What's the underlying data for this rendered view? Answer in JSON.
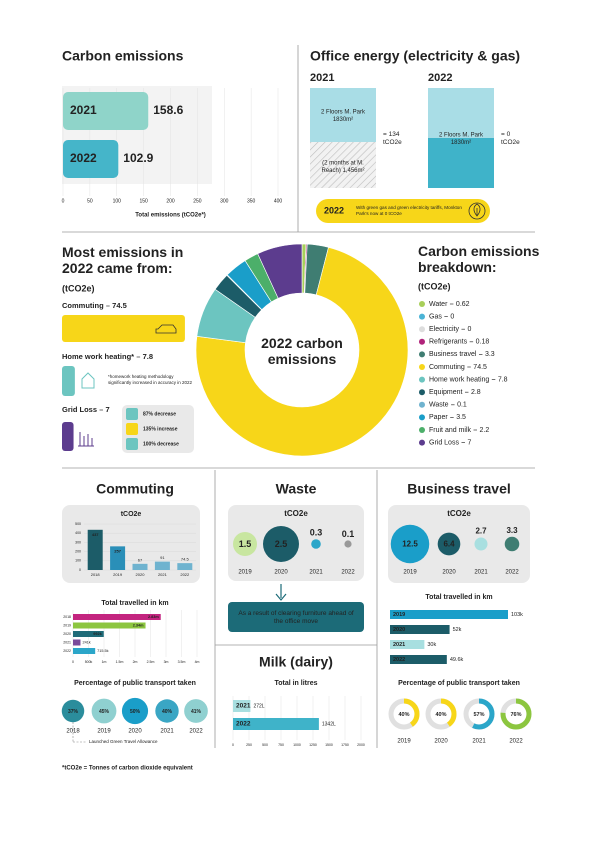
{
  "chart_data": [
    {
      "type": "hbar",
      "title": "Carbon emissions",
      "categories": [
        "2021",
        "2022"
      ],
      "values": [
        158.6,
        102.9
      ],
      "colors": [
        "#8fd4c9",
        "#45b5c9"
      ],
      "xlabel": "Total emissions (tCO2e*)",
      "xlim": [
        0,
        400
      ],
      "xticks": [
        0,
        50,
        100,
        150,
        200,
        250,
        300,
        350,
        400
      ]
    },
    {
      "type": "donut",
      "title": "Carbon emissions breakdown:",
      "subtitle": "(tCO2e)",
      "center_label": "2022 carbon emissions",
      "categories": [
        "Water",
        "Gas",
        "Electricity",
        "Refrigerants",
        "Business travel",
        "Commuting",
        "Home work heating",
        "Equipment",
        "Waste",
        "Paper",
        "Fruit and milk",
        "Grid Loss"
      ],
      "values": [
        0.62,
        0,
        0,
        0.18,
        3.3,
        74.5,
        7.8,
        2.8,
        0.1,
        3.5,
        2.2,
        7
      ],
      "colors": [
        "#a8cf5a",
        "#4bb4d6",
        "#dddddd",
        "#b0237a",
        "#3f7d72",
        "#f7d619",
        "#6cc5c0",
        "#1c5c68",
        "#6fb3cf",
        "#1a9ec9",
        "#4caf6a",
        "#5c3c8e"
      ]
    },
    {
      "type": "vbar",
      "title": "tCO2e",
      "categories": [
        "2018",
        "2019",
        "2020",
        "2021",
        "2022"
      ],
      "values": [
        437,
        257,
        67,
        91,
        74.5
      ],
      "colors": [
        "#1c5c68",
        "#2a8fb8",
        "#6fb3cf",
        "#6fb3cf",
        "#6fb3cf"
      ],
      "ylim": [
        0,
        500
      ],
      "yticks": [
        0,
        100,
        200,
        300,
        400,
        500
      ]
    },
    {
      "type": "hbar",
      "title": "Total travelled in km",
      "categories": [
        "2018",
        "2019",
        "2020",
        "2021",
        "2022"
      ],
      "values": [
        2830000,
        2340000,
        992000,
        241000,
        715500
      ],
      "value_labels": [
        "2.83m",
        "2.34m",
        "992k",
        "241k",
        "715.5k"
      ],
      "colors": [
        "#c3247f",
        "#8cc63f",
        "#1f6b78",
        "#7a4a9a",
        "#2ba6c9"
      ],
      "xlim": [
        0,
        4000000
      ],
      "xticks": [
        0,
        {
          "value": 500000,
          "label": "500k"
        },
        {
          "value": 1000000,
          "label": "1m"
        },
        {
          "value": 1500000,
          "label": "1.5m"
        },
        {
          "value": 2000000,
          "label": "2m"
        },
        {
          "value": 2500000,
          "label": "2.5m"
        },
        {
          "value": 3000000,
          "label": "3m"
        },
        {
          "value": 3500000,
          "label": "3.5m"
        },
        {
          "value": 4000000,
          "label": "4m"
        }
      ]
    },
    {
      "type": "bubble",
      "title": "Percentage of public transport taken",
      "categories": [
        "2018",
        "2019",
        "2020",
        "2021",
        "2022"
      ],
      "values": [
        37,
        45,
        50,
        40,
        41
      ],
      "value_labels": [
        "37%",
        "45%",
        "50%",
        "40%",
        "41%"
      ],
      "colors": [
        "#2b8d9c",
        "#8fd0d0",
        "#1a9ec9",
        "#3aa6c4",
        "#8fd0d0"
      ],
      "note": "Launched Green Travel Allowance"
    },
    {
      "type": "bubble",
      "title": "tCO2e",
      "categories": [
        "2019",
        "2020",
        "2021",
        "2022"
      ],
      "values": [
        1.5,
        2.5,
        0.3,
        0.1
      ],
      "colors": [
        "#c8e6a0",
        "#1c5c68",
        "#2ba6c9",
        "#999999"
      ]
    },
    {
      "type": "hbar",
      "title": "Total in litres",
      "categories": [
        "2021",
        "2022"
      ],
      "values": [
        272,
        1342
      ],
      "value_labels": [
        "272L",
        "1342L"
      ],
      "colors": [
        "#a8dfe0",
        "#3fb3c9"
      ],
      "xlim": [
        0,
        2000
      ],
      "xticks": [
        0,
        250,
        500,
        750,
        1000,
        1250,
        1500,
        1750,
        2000
      ]
    },
    {
      "type": "bubble",
      "title": "tCO2e",
      "categories": [
        "2019",
        "2020",
        "2021",
        "2022"
      ],
      "values": [
        12.5,
        6.4,
        2.7,
        3.3
      ],
      "colors": [
        "#1a9ec9",
        "#1c5c68",
        "#a8dfe0",
        "#3f7d72"
      ]
    },
    {
      "type": "hbar",
      "title": "Total travelled in km",
      "categories": [
        "2019",
        "2020",
        "2021",
        "2022"
      ],
      "values": [
        103000,
        52000,
        30000,
        49600
      ],
      "value_labels": [
        "103k",
        "52k",
        "30k",
        "49.6k"
      ],
      "colors": [
        "#1a9ec9",
        "#1c5c68",
        "#a8dfe0",
        "#1c5c68"
      ]
    },
    {
      "type": "ring",
      "title": "Percentage of public transport taken",
      "categories": [
        "2019",
        "2020",
        "2021",
        "2022"
      ],
      "values": [
        40,
        40,
        57,
        76
      ],
      "value_labels": [
        "40%",
        "40%",
        "57%",
        "76%"
      ],
      "colors": [
        "#f7d619",
        "#f7d619",
        "#2ba6c9",
        "#8cc63f"
      ]
    }
  ],
  "office_energy": {
    "title": "Office energy (electricity & gas)",
    "years": [
      {
        "year": "2021",
        "blocks": [
          "2 Floors M. Park 1830m²",
          "(2 months at M. Reach) 1,456m²"
        ],
        "result": "= 134 tCO2e"
      },
      {
        "year": "2022",
        "blocks": [
          "2 Floors M. Park 1830m²"
        ],
        "result": "= 0 tCO2e"
      }
    ],
    "badge": "2022",
    "note": "With green gas and green electricity tariffs, Monkton Park's now at 0 tCO2e"
  },
  "most_emissions": {
    "title": "Most emissions in 2022 came from:",
    "subtitle": "(tCO2e)",
    "items": [
      {
        "name": "Commuting",
        "value": 74.5,
        "color": "#f7d619"
      },
      {
        "name": "Home work heating*",
        "value": 7.8,
        "color": "#6cc5c0"
      },
      {
        "name": "Grid Loss",
        "value": 7,
        "color": "#5c3c8e"
      }
    ],
    "note": "*homework heating methodology significantly increased in accuracy in 2022",
    "changes": [
      "87% decrease",
      "135% increase",
      "100% decrease"
    ]
  },
  "sections": {
    "commuting": "Commuting",
    "waste": "Waste",
    "milk": "Milk (dairy)",
    "business_travel": "Business travel"
  },
  "waste_note": "As a result of clearing furniture ahead of the office move",
  "footnote": "*tCO2e = Tonnes of carbon dioxide equivalent"
}
